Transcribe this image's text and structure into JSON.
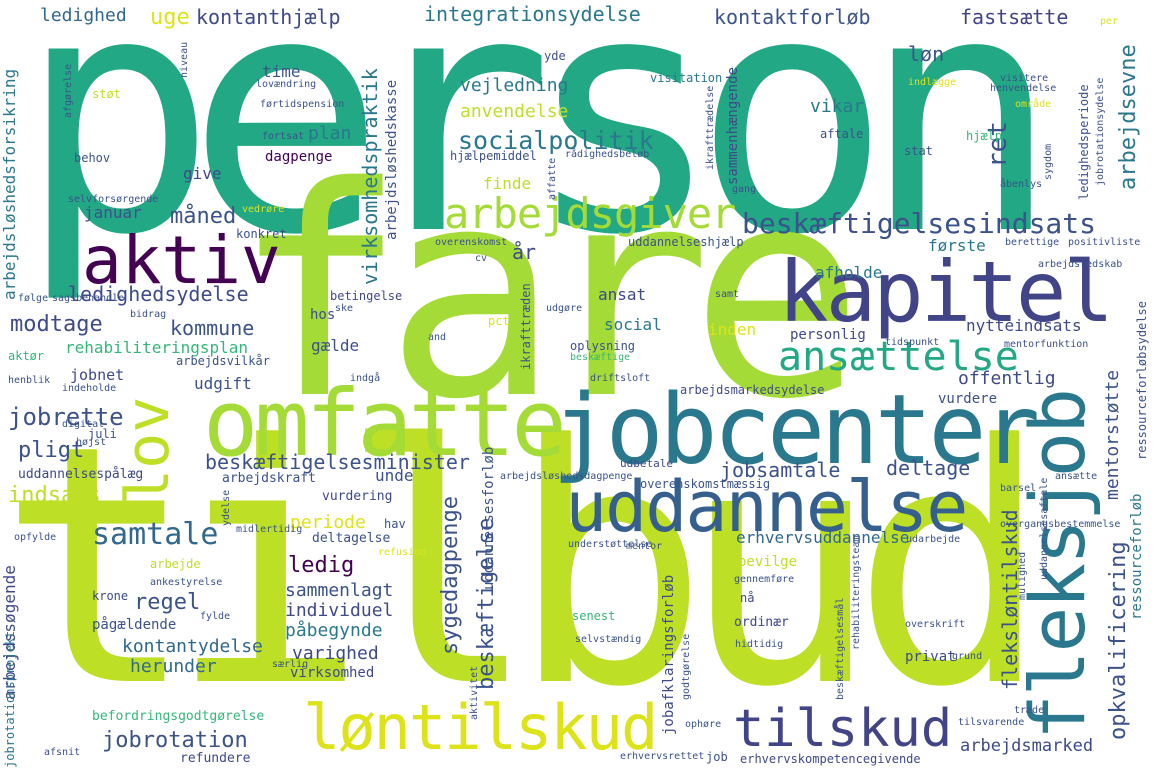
{
  "words": {
    "person": "person",
    "fare": "fare",
    "tilbud": "tilbud",
    "jobcenter": "jobcenter",
    "omfatte": "omfatte",
    "kapitel": "kapitel",
    "uddannelse": "uddannelse",
    "fleksjob": "fleksjob",
    "aktiv": "aktiv",
    "lov": "lov",
    "arbejdsgiver": "arbejdsgiver",
    "loentilskud": "løntilskud",
    "tilskud": "tilskud",
    "ansaettelse": "ansættelse",
    "beskaeftigelsesindsats": "beskæftigelsesindsats",
    "socialpolitik": "socialpolitik",
    "integrationsydelse": "integrationsydelse",
    "kontaktforloeb": "kontaktforløb",
    "kontanthjaelp": "kontanthjælp",
    "ledighed": "ledighed",
    "uge": "uge",
    "fastsaette": "fastsætte",
    "loen": "løn",
    "arbejdsevne": "arbejdsevne",
    "samtale": "samtale",
    "indsats": "indsats",
    "jobrette": "jobrette",
    "pligt": "pligt",
    "modtage": "modtage",
    "kommune": "kommune",
    "ledighedsydelse": "ledighedsydelse",
    "maaned": "måned",
    "januar": "januar",
    "regel": "regel",
    "ledig": "ledig",
    "periode": "periode",
    "sammenlagt": "sammenlagt",
    "individuel": "individuel",
    "paabegynde": "påbegynde",
    "kontantydelse": "kontantydelse",
    "herunder": "herunder",
    "varighed": "varighed",
    "virksomhed": "virksomhed",
    "jobrotation": "jobrotation",
    "refundere": "refundere",
    "befordringsgodtgoerelse": "befordringsgodtgørelse",
    "beskaeftigelsesminister": "beskæftigelsesminister",
    "jobsamtale": "jobsamtale",
    "deltage": "deltage",
    "unde": "unde",
    "erhvervsuddannelse": "erhvervsuddannelse",
    "sygedagpenge": "sygedagpenge",
    "beskaeftigelse": "beskæftigelse",
    "fleksloentilskud": "fleksløntilskud",
    "opkvalificering": "opkvalificering",
    "mentorstoette": "mentorstøtte",
    "arbejdsmarked": "arbejdsmarked",
    "virksomhedspraktik": "virksomhedspraktik",
    "rehabiliteringsplan": "rehabiliteringsplan",
    "gaelde": "gælde",
    "udgift": "udgift",
    "jobnet": "jobnet",
    "social": "social",
    "ansat": "ansat",
    "inden": "inden",
    "offentlig": "offentlig",
    "vurdere": "vurdere",
    "nytteindsats": "nytteindsats",
    "personlig": "personlig",
    "afholde": "afholde",
    "foerste": "første",
    "ret": "ret",
    "vikar": "vikar",
    "plan": "plan",
    "time": "time",
    "vejledning": "vejledning",
    "anvendelse": "anvendelse",
    "finde": "finde",
    "give": "give",
    "dagpenge": "dagpenge",
    "behov": "behov",
    "yde": "yde",
    "visitation": "visitation",
    "sammenhaengende": "sammenhængende",
    "arbejdsloeshedsforsikring": "arbejdsløshedsforsikring",
    "arbejdsloeshedskasse": "arbejdsløshedskasse",
    "uddannelsespaalaeg": "uddannelsespålæg",
    "arbejdskraft": "arbejdskraft",
    "vurdering": "vurdering",
    "deltagelse": "deltagelse",
    "arbejdssoegende": "arbejdssøgende",
    "jobrotationsprojekt": "jobrotationsprojekt",
    "ressourceforloeb": "ressourceforløb",
    "ressourceforloebsydelse": "ressourceforløbsydelse",
    "jobafklaringsforloeb": "jobafklaringsforløb",
    "uddannelsesforloeb": "uddannelsesforløb",
    "arbejdsmarkedsydelse": "arbejdsmarkedsydelse",
    "ikrafttraeden": "ikrafttræden",
    "bevilge": "bevilge",
    "nå": "nå",
    "ordinaer": "ordinær",
    "privat": "privat",
    "senest": "senest",
    "hidtidig": "hidtidig",
    "udbetale": "udbetale",
    "erhvervskompetencegivende": "erhvervskompetencegivende",
    "erhvervsrettet": "erhvervsrettet",
    "job": "job",
    "oplysning": "oplysning",
    "beskaeftige": "beskæftige",
    "driftsloft": "driftsloft",
    "aar": "år",
    "pct": "pct",
    "stoet": "støt",
    "stat": "stat",
    "aftale": "aftale",
    "hjaelp": "hjælp",
    "sygdom": "sygdom",
    "aabenlys": "åbenlys",
    "arbejde": "arbejde",
    "ankestyrelse": "ankestyrelse",
    "krone": "krone",
    "paagaeldende": "pågældende",
    "konkret": "konkret",
    "betingelse": "betingelse",
    "hos": "hos",
    "ske": "ske",
    "bidrag": "bidrag",
    "saagsbehandle": "sagsbehandle",
    "foelge": "følge",
    "aktoer": "aktør",
    "henblik": "henblik",
    "indeholde": "indeholde",
    "digital": "digital",
    "juli": "juli",
    "hoejst": "højst",
    "opfylde": "opfylde",
    "midlertidig": "midlertidig",
    "ydelse": "ydelse",
    "hav": "hav",
    "refusion": "refusion",
    "fylde": "fylde",
    "saerlig": "særlig",
    "aktivitet": "aktivitet",
    "afsnit": "afsnit",
    "ophoere": "ophøre",
    "trade": "træde",
    "tilsvarende": "tilsvarende",
    "overskrift": "overskrift",
    "grund": "grund",
    "gennemfoere": "gennemføre",
    "udarbejde": "udarbejde",
    "mulighed": "mulighed",
    "uddannelsessaetale": "uddannelsesaftale",
    "barsel": "barsel",
    "ansaette": "ansætte",
    "overgangsbestemmelse": "overgangsbestemmelse",
    "overenskomstmaessig": "overenskomstmæssig",
    "understoettelse": "understøttelse",
    "mentor": "mentor",
    "arbejdsloeshedsdagpenge": "arbejdsløshedsdagpenge",
    "udgoere": "udgøre",
    "samt": "samt",
    "and": "and",
    "cv": "cv",
    "indgaa": "indgå",
    "tidspunkt": "tidspunkt",
    "mentorfunktion": "mentorfunktion",
    "arbejdsredskab": "arbejdsredskab",
    "berettige": "berettige",
    "positivliste": "positivliste",
    "overenskomst": "overenskomst",
    "uddannelseshjaelp": "uddannelseshjælp",
    "hjaelpemiddel": "hjælpemiddel",
    "raadighedsbeloeb": "rådighedsbeløb",
    "affatte": "affatte",
    "gang": "gang",
    "ikrafttraedelse": "ikrafttrædelse",
    "ledighedsperiode": "ledighedsperiode",
    "jobrotationsydelse": "jobrotationsydelse",
    "visitere": "visitere",
    "henvendelse": "henvendelse",
    "indlaegge": "indlægge",
    "omraade": "område",
    "fortsat": "fortsat",
    "per": "per",
    "fertidspension": "førtidspension",
    "lovaendring": "lovændring",
    "niveau": "niveau",
    "afgoerelse": "afgørelse",
    "selvforsoergende": "selvforsørgende",
    "vedroere": "vedrøre",
    "arbejdsvilkaar": "arbejdsvilkår",
    "godtgoerelse": "godtgørelse",
    "rehabiliteringsteam": "rehabiliteringsteam",
    "beskaeftigelsesmaal": "beskæftigelsesmål",
    "selvstaendig": "selvstændig"
  }
}
